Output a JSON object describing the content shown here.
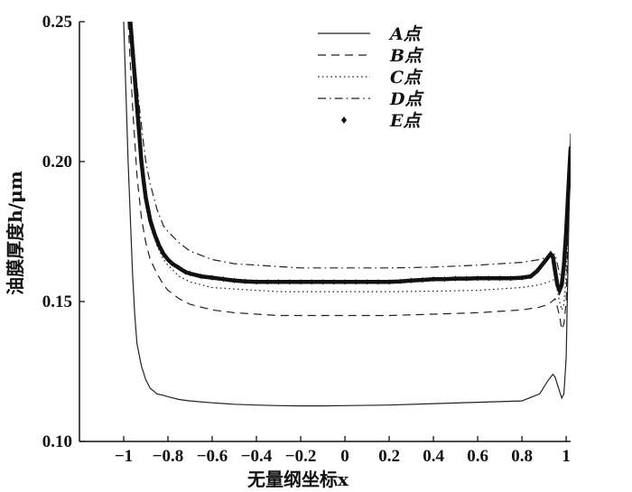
{
  "chart_data": {
    "type": "line",
    "xlabel": "无量纲坐标x",
    "ylabel": "油膜厚度h/μm",
    "xlim": [
      -1.2,
      1.02
    ],
    "ylim": [
      0.1,
      0.25
    ],
    "xticks": [
      "−1",
      "−0.8",
      "−0.6",
      "−0.4",
      "−0.2",
      "0",
      "0.2",
      "0.4",
      "0.6",
      "0.8",
      "1"
    ],
    "xtick_values": [
      -1,
      -0.8,
      -0.6,
      -0.4,
      -0.2,
      0,
      0.2,
      0.4,
      0.6,
      0.8,
      1
    ],
    "yticks": [
      "0.10",
      "0.15",
      "0.20",
      "0.25"
    ],
    "ytick_values": [
      0.1,
      0.15,
      0.2,
      0.25
    ],
    "legend_position": "top-right",
    "series": [
      {
        "name": "A点",
        "style": "solid",
        "x": [
          -1.0,
          -0.98,
          -0.96,
          -0.95,
          -0.94,
          -0.92,
          -0.9,
          -0.88,
          -0.85,
          -0.82,
          -0.8,
          -0.75,
          -0.7,
          -0.6,
          -0.5,
          -0.4,
          -0.3,
          -0.2,
          -0.1,
          0.0,
          0.2,
          0.4,
          0.6,
          0.8,
          0.88,
          0.92,
          0.94,
          0.95,
          0.97,
          0.98,
          0.99,
          1.0,
          1.01,
          1.02
        ],
        "y": [
          0.25,
          0.2,
          0.16,
          0.145,
          0.135,
          0.127,
          0.122,
          0.119,
          0.117,
          0.1165,
          0.116,
          0.115,
          0.1145,
          0.1138,
          0.1133,
          0.113,
          0.1128,
          0.1127,
          0.1127,
          0.1128,
          0.113,
          0.1135,
          0.114,
          0.1145,
          0.117,
          0.122,
          0.124,
          0.123,
          0.118,
          0.1155,
          0.117,
          0.13,
          0.17,
          0.21
        ]
      },
      {
        "name": "B点",
        "style": "dashed",
        "x": [
          -0.98,
          -0.96,
          -0.94,
          -0.92,
          -0.9,
          -0.88,
          -0.85,
          -0.82,
          -0.8,
          -0.75,
          -0.7,
          -0.6,
          -0.5,
          -0.4,
          -0.3,
          -0.2,
          -0.1,
          0.0,
          0.2,
          0.4,
          0.6,
          0.8,
          0.88,
          0.92,
          0.95,
          0.97,
          0.98,
          0.99,
          1.0,
          1.01,
          1.02
        ],
        "y": [
          0.25,
          0.22,
          0.195,
          0.18,
          0.171,
          0.165,
          0.16,
          0.156,
          0.154,
          0.151,
          0.149,
          0.147,
          0.146,
          0.1455,
          0.145,
          0.145,
          0.145,
          0.145,
          0.145,
          0.1455,
          0.146,
          0.147,
          0.148,
          0.149,
          0.151,
          0.145,
          0.14,
          0.142,
          0.15,
          0.18,
          0.205
        ]
      },
      {
        "name": "C点",
        "style": "dotted",
        "x": [
          -0.97,
          -0.95,
          -0.93,
          -0.91,
          -0.9,
          -0.88,
          -0.85,
          -0.82,
          -0.8,
          -0.75,
          -0.7,
          -0.6,
          -0.5,
          -0.4,
          -0.3,
          -0.2,
          -0.1,
          0.0,
          0.2,
          0.4,
          0.6,
          0.8,
          0.88,
          0.92,
          0.95,
          0.97,
          0.98,
          0.99,
          1.0,
          1.01,
          1.02
        ],
        "y": [
          0.25,
          0.225,
          0.205,
          0.19,
          0.184,
          0.177,
          0.17,
          0.165,
          0.163,
          0.159,
          0.157,
          0.155,
          0.1545,
          0.154,
          0.1535,
          0.1535,
          0.1535,
          0.1535,
          0.1535,
          0.1537,
          0.154,
          0.155,
          0.156,
          0.157,
          0.158,
          0.15,
          0.147,
          0.149,
          0.16,
          0.185,
          0.205
        ]
      },
      {
        "name": "D点",
        "style": "dashdot",
        "x": [
          -0.97,
          -0.95,
          -0.93,
          -0.91,
          -0.9,
          -0.88,
          -0.85,
          -0.82,
          -0.8,
          -0.75,
          -0.7,
          -0.6,
          -0.5,
          -0.4,
          -0.3,
          -0.2,
          -0.1,
          0.0,
          0.2,
          0.4,
          0.6,
          0.8,
          0.88,
          0.92,
          0.95,
          0.97,
          0.98,
          0.99,
          1.0,
          1.01,
          1.02
        ],
        "y": [
          0.25,
          0.235,
          0.22,
          0.206,
          0.2,
          0.192,
          0.183,
          0.177,
          0.175,
          0.171,
          0.168,
          0.165,
          0.1635,
          0.163,
          0.1625,
          0.162,
          0.162,
          0.162,
          0.162,
          0.1623,
          0.163,
          0.164,
          0.165,
          0.166,
          0.167,
          0.16,
          0.157,
          0.16,
          0.17,
          0.19,
          0.205
        ]
      },
      {
        "name": "E点",
        "style": "marker",
        "x": [
          -0.97,
          -0.96,
          -0.95,
          -0.94,
          -0.93,
          -0.92,
          -0.91,
          -0.9,
          -0.89,
          -0.88,
          -0.86,
          -0.84,
          -0.82,
          -0.8,
          -0.78,
          -0.75,
          -0.72,
          -0.7,
          -0.65,
          -0.6,
          -0.55,
          -0.5,
          -0.45,
          -0.4,
          -0.35,
          -0.3,
          -0.25,
          -0.2,
          -0.15,
          -0.1,
          -0.05,
          0.0,
          0.05,
          0.1,
          0.15,
          0.2,
          0.25,
          0.3,
          0.35,
          0.4,
          0.45,
          0.5,
          0.55,
          0.6,
          0.65,
          0.7,
          0.75,
          0.8,
          0.84,
          0.87,
          0.9,
          0.92,
          0.93,
          0.94,
          0.95,
          0.96,
          0.97,
          0.98,
          0.99,
          1.0,
          1.01,
          1.02
        ],
        "y": [
          0.25,
          0.24,
          0.23,
          0.22,
          0.21,
          0.2,
          0.193,
          0.187,
          0.183,
          0.179,
          0.174,
          0.17,
          0.167,
          0.165,
          0.1635,
          0.162,
          0.1605,
          0.16,
          0.159,
          0.1585,
          0.158,
          0.1575,
          0.1572,
          0.157,
          0.157,
          0.157,
          0.157,
          0.157,
          0.157,
          0.157,
          0.157,
          0.157,
          0.157,
          0.157,
          0.157,
          0.157,
          0.1572,
          0.1575,
          0.1577,
          0.158,
          0.158,
          0.1582,
          0.1582,
          0.1583,
          0.1583,
          0.1583,
          0.1583,
          0.1585,
          0.159,
          0.161,
          0.164,
          0.166,
          0.167,
          0.166,
          0.161,
          0.156,
          0.154,
          0.156,
          0.163,
          0.175,
          0.19,
          0.205
        ]
      }
    ]
  }
}
